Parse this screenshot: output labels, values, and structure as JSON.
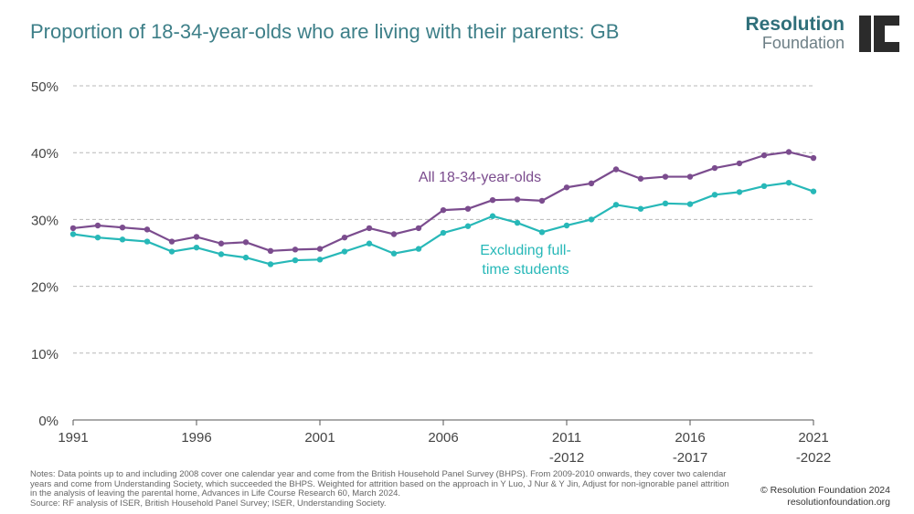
{
  "header": {
    "title": "Proportion of 18-34-year-olds who are living with their parents: GB",
    "logo_brand": "Resolution",
    "logo_sub": "Foundation"
  },
  "chart_data": {
    "type": "line",
    "title": "Proportion of 18-34-year-olds who are living with their parents: GB",
    "xlabel": "",
    "ylabel": "",
    "ylim": [
      0,
      50
    ],
    "yticks": [
      "0%",
      "10%",
      "20%",
      "30%",
      "40%",
      "50%"
    ],
    "x": [
      1991,
      1992,
      1993,
      1994,
      1995,
      1996,
      1997,
      1998,
      1999,
      2000,
      2001,
      2002,
      2003,
      2004,
      2005,
      2006,
      2007,
      2008,
      2009,
      2010,
      2011,
      2012,
      2013,
      2014,
      2015,
      2016,
      2017,
      2018,
      2019,
      2020,
      2021
    ],
    "xticks": [
      {
        "x": 1991,
        "lines": [
          "1991"
        ]
      },
      {
        "x": 1996,
        "lines": [
          "1996"
        ]
      },
      {
        "x": 2001,
        "lines": [
          "2001"
        ]
      },
      {
        "x": 2006,
        "lines": [
          "2006"
        ]
      },
      {
        "x": 2011,
        "lines": [
          "2011",
          "-2012"
        ]
      },
      {
        "x": 2016,
        "lines": [
          "2016",
          "-2017"
        ]
      },
      {
        "x": 2021,
        "lines": [
          "2021",
          "-2022"
        ]
      }
    ],
    "grid": true,
    "series": [
      {
        "name": "All 18-34-year-olds",
        "label_lines": [
          "All 18-34-year-olds"
        ],
        "color": "#7b4c8e",
        "values": [
          28.7,
          29.1,
          28.8,
          28.5,
          26.7,
          27.4,
          26.4,
          26.6,
          25.3,
          25.5,
          25.6,
          27.3,
          28.7,
          27.8,
          28.7,
          31.4,
          31.6,
          32.9,
          33.0,
          32.8,
          34.8,
          35.4,
          37.5,
          36.1,
          36.4,
          36.4,
          37.7,
          38.4,
          39.6,
          40.1,
          39.2
        ]
      },
      {
        "name": "Excluding full-time students",
        "label_lines": [
          "Excluding full-",
          "time students"
        ],
        "color": "#27b8b8",
        "values": [
          27.8,
          27.3,
          27.0,
          26.7,
          25.2,
          25.8,
          24.8,
          24.3,
          23.3,
          23.9,
          24.0,
          25.2,
          26.4,
          24.9,
          25.6,
          28.0,
          29.0,
          30.5,
          29.5,
          28.1,
          29.1,
          30.0,
          32.2,
          31.6,
          32.4,
          32.3,
          33.7,
          34.1,
          35.0,
          35.5,
          34.2
        ]
      }
    ]
  },
  "footer": {
    "notes": [
      "Notes: Data points up to and including 2008 cover one calendar year and come from the British Household Panel Survey (BHPS). From 2009-2010 onwards, they cover two calendar years and come from Understanding Society, which succeeded the BHPS. Weighted for attrition based on the approach in Y Luo, J Nur & Y Jin, Adjust for non-ignorable panel attrition in the analysis of leaving the parental home, Advances in Life Course Research 60, March 2024.",
      "Source: RF analysis of ISER, British Household Panel Survey; ISER, Understanding Society."
    ],
    "copyright": "© Resolution Foundation 2024",
    "website": "resolutionfoundation.org"
  }
}
